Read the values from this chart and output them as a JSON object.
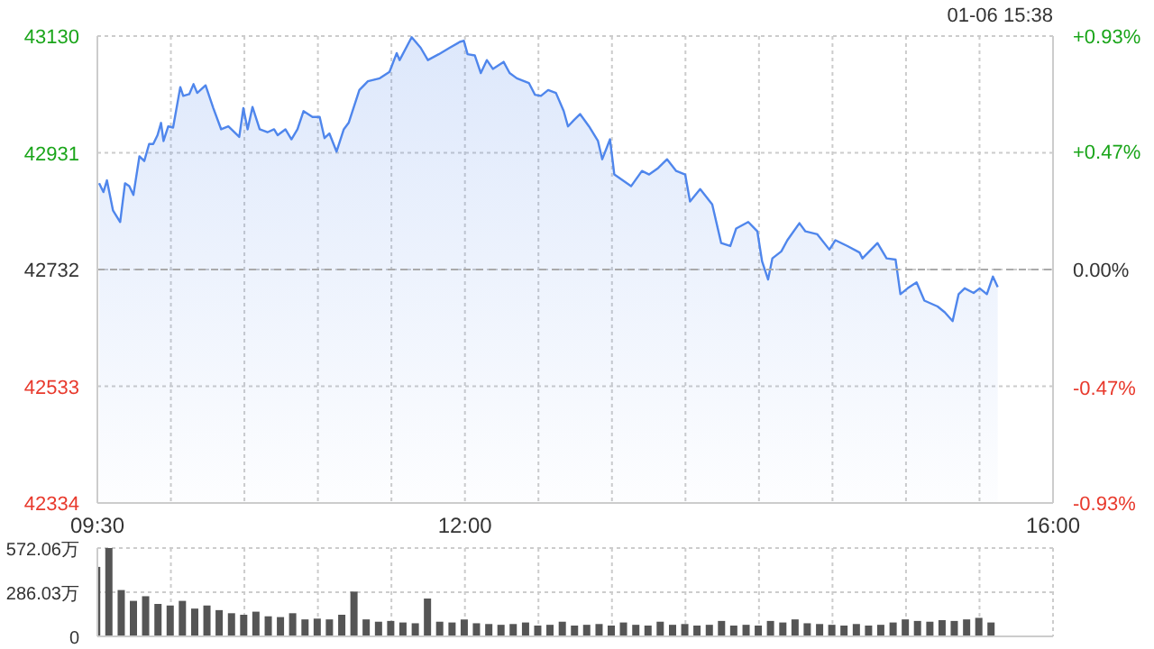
{
  "chart_data": [
    {
      "type": "area",
      "annotations": [
        "01-06 15:38"
      ],
      "x": [
        9.512,
        9.541,
        9.565,
        9.606,
        9.655,
        9.688,
        9.717,
        9.745,
        9.786,
        9.819,
        9.852,
        9.88,
        9.909,
        9.933,
        9.95,
        9.982,
        10.015,
        10.064,
        10.084,
        10.125,
        10.154,
        10.179,
        10.236,
        10.289,
        10.342,
        10.391,
        10.465,
        10.493,
        10.522,
        10.555,
        10.604,
        10.657,
        10.702,
        10.726,
        10.779,
        10.82,
        10.861,
        10.902,
        10.963,
        11.012,
        11.045,
        11.078,
        11.127,
        11.176,
        11.209,
        11.282,
        11.34,
        11.421,
        11.487,
        11.536,
        11.556,
        11.638,
        11.699,
        11.748,
        11.822,
        11.896,
        11.965,
        11.993,
        12.018,
        12.067,
        12.108,
        12.149,
        12.19,
        12.263,
        12.304,
        12.353,
        12.435,
        12.476,
        12.517,
        12.566,
        12.619,
        12.672,
        12.701,
        12.742,
        12.783,
        12.844,
        12.905,
        12.934,
        12.987,
        13.016,
        13.13,
        13.204,
        13.253,
        13.314,
        13.375,
        13.437,
        13.498,
        13.531,
        13.6,
        13.682,
        13.743,
        13.805,
        13.845,
        13.927,
        13.989,
        14.021,
        14.062,
        14.091,
        14.152,
        14.193,
        14.275,
        14.316,
        14.397,
        14.479,
        14.52,
        14.602,
        14.684,
        14.704,
        14.806,
        14.868,
        14.929,
        14.962,
        15.011,
        15.072,
        15.125,
        15.215,
        15.264,
        15.317,
        15.358,
        15.399,
        15.46,
        15.501,
        15.55,
        15.591,
        15.624
      ],
      "series": [
        {
          "color": "#4f86ec",
          "values": [
            42879,
            42864,
            42884,
            42833,
            42813,
            42879,
            42874,
            42859,
            42925,
            42917,
            42946,
            42946,
            42961,
            42982,
            42951,
            42976,
            42974,
            43043,
            43028,
            43031,
            43048,
            43033,
            43046,
            43007,
            42971,
            42976,
            42958,
            43007,
            42971,
            43009,
            42971,
            42966,
            42971,
            42961,
            42971,
            42954,
            42971,
            43002,
            42992,
            42992,
            42956,
            42964,
            42933,
            42971,
            42982,
            43038,
            43053,
            43058,
            43069,
            43101,
            43089,
            43128,
            43110,
            43089,
            43099,
            43110,
            43120,
            43122,
            43099,
            43097,
            43067,
            43089,
            43074,
            43086,
            43067,
            43058,
            43050,
            43030,
            43028,
            43038,
            43033,
            43002,
            42976,
            42987,
            42997,
            42976,
            42951,
            42920,
            42954,
            42894,
            42874,
            42900,
            42894,
            42905,
            42920,
            42900,
            42894,
            42848,
            42869,
            42843,
            42777,
            42772,
            42802,
            42813,
            42797,
            42746,
            42715,
            42751,
            42763,
            42782,
            42811,
            42797,
            42792,
            42766,
            42782,
            42772,
            42761,
            42751,
            42777,
            42751,
            42749,
            42690,
            42700,
            42710,
            42679,
            42669,
            42659,
            42644,
            42690,
            42700,
            42692,
            42700,
            42690,
            42720,
            42702
          ]
        }
      ],
      "xlim": [
        9.5,
        16
      ],
      "xticks": [
        {
          "value": 9.5,
          "label": "09:30"
        },
        {
          "value": 10,
          "label": null
        },
        {
          "value": 10.5,
          "label": null
        },
        {
          "value": 11,
          "label": null
        },
        {
          "value": 11.5,
          "label": null
        },
        {
          "value": 12,
          "label": "12:00"
        },
        {
          "value": 12.5,
          "label": null
        },
        {
          "value": 13,
          "label": null
        },
        {
          "value": 13.5,
          "label": null
        },
        {
          "value": 14,
          "label": null
        },
        {
          "value": 14.5,
          "label": null
        },
        {
          "value": 15,
          "label": null
        },
        {
          "value": 15.5,
          "label": null
        },
        {
          "value": 16,
          "label": "16:00"
        }
      ],
      "ylim": [
        42334,
        43130
      ],
      "yticks": [
        42334,
        42533,
        42732,
        42931,
        43130
      ],
      "y2lim": [
        -0.93,
        0.93
      ],
      "y2ticks": [
        {
          "value": -0.93,
          "label": "-0.93%"
        },
        {
          "value": -0.47,
          "label": "-0.47%"
        },
        {
          "value": 0,
          "label": "0.00%"
        },
        {
          "value": 0.47,
          "label": "+0.47%"
        },
        {
          "value": 0.93,
          "label": "+0.93%"
        }
      ],
      "ref_lines": [
        {
          "axis": "y",
          "value": 42732,
          "color": "#aaaaaa",
          "line_style": "dashed"
        }
      ],
      "grid": true
    },
    {
      "type": "bar",
      "x": [
        9.5,
        9.583,
        9.667,
        9.75,
        9.833,
        9.917,
        10,
        10.083,
        10.167,
        10.25,
        10.333,
        10.417,
        10.5,
        10.583,
        10.667,
        10.75,
        10.833,
        10.917,
        11,
        11.083,
        11.167,
        11.25,
        11.333,
        11.417,
        11.5,
        11.583,
        11.667,
        11.75,
        11.833,
        11.917,
        12,
        12.083,
        12.167,
        12.25,
        12.333,
        12.417,
        12.5,
        12.583,
        12.667,
        12.75,
        12.833,
        12.917,
        13,
        13.083,
        13.167,
        13.25,
        13.333,
        13.417,
        13.5,
        13.583,
        13.667,
        13.75,
        13.833,
        13.917,
        14,
        14.083,
        14.167,
        14.25,
        14.333,
        14.417,
        14.5,
        14.583,
        14.667,
        14.75,
        14.833,
        14.917,
        15,
        15.083,
        15.167,
        15.25,
        15.333,
        15.417,
        15.5,
        15.583
      ],
      "values": [
        450,
        572,
        300,
        230,
        260,
        210,
        200,
        230,
        180,
        200,
        170,
        150,
        140,
        160,
        130,
        125,
        150,
        110,
        115,
        110,
        140,
        290,
        110,
        95,
        100,
        90,
        85,
        245,
        95,
        90,
        110,
        85,
        80,
        75,
        80,
        90,
        70,
        75,
        95,
        70,
        75,
        80,
        70,
        90,
        75,
        70,
        95,
        75,
        80,
        70,
        75,
        100,
        70,
        75,
        70,
        100,
        90,
        110,
        85,
        80,
        75,
        70,
        80,
        70,
        75,
        90,
        110,
        100,
        95,
        105,
        100,
        110,
        120,
        90
      ],
      "color": "#555555",
      "xlim": [
        9.5,
        16
      ],
      "xticks": [
        {
          "value": 10,
          "label": null
        },
        {
          "value": 10.5,
          "label": null
        },
        {
          "value": 11,
          "label": null
        },
        {
          "value": 11.5,
          "label": null
        },
        {
          "value": 12,
          "label": null
        },
        {
          "value": 12.5,
          "label": null
        },
        {
          "value": 13,
          "label": null
        },
        {
          "value": 13.5,
          "label": null
        },
        {
          "value": 14,
          "label": null
        },
        {
          "value": 14.5,
          "label": null
        },
        {
          "value": 15,
          "label": null
        },
        {
          "value": 15.5,
          "label": null
        }
      ],
      "ylim": [
        0,
        572.06
      ],
      "yticks": [
        0,
        {
          "value": 286.03,
          "label": "286.03万"
        },
        {
          "value": 572.06,
          "label": "572.06万"
        }
      ],
      "tick_labels": "y",
      "grid": true
    }
  ]
}
